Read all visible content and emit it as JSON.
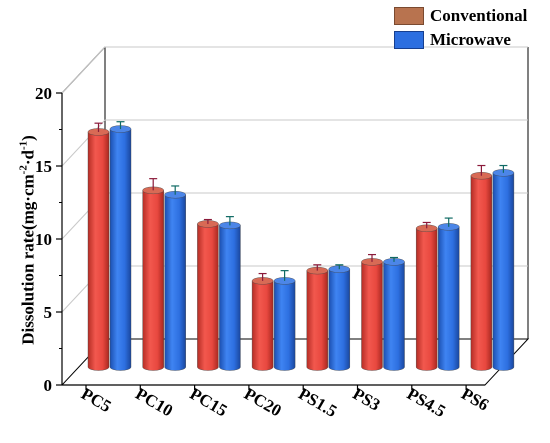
{
  "chart_data": {
    "type": "bar",
    "categories": [
      "PC5",
      "PC10",
      "PC15",
      "PC20",
      "PS1.5",
      "PS3",
      "PS4.5",
      "PS6"
    ],
    "series": [
      {
        "name": "Conventional",
        "values": [
          16.1,
          12.1,
          9.8,
          5.9,
          6.6,
          7.2,
          9.5,
          13.1
        ],
        "errors": [
          0.6,
          0.8,
          0.3,
          0.5,
          0.4,
          0.5,
          0.4,
          0.7
        ],
        "color": "#e8483f",
        "legend_color": "#b8734f"
      },
      {
        "name": "Microwave",
        "values": [
          16.3,
          11.8,
          9.7,
          5.9,
          6.7,
          7.2,
          9.6,
          13.3
        ],
        "errors": [
          0.5,
          0.6,
          0.6,
          0.7,
          0.3,
          0.3,
          0.6,
          0.5
        ],
        "color": "#2d6fe0",
        "legend_color": "#2d6fe0"
      }
    ],
    "ylabel_text": "Dissolution rate(mg·cm",
    "ylabel_sup1": "-2",
    "ylabel_mid": "·d",
    "ylabel_sup2": "-1",
    "ylabel_end": ")",
    "yticks": [
      "0",
      "5",
      "10",
      "15",
      "20"
    ],
    "ylim": [
      0,
      20
    ],
    "legend_position": "top-right",
    "style": "3d-cylinder"
  }
}
